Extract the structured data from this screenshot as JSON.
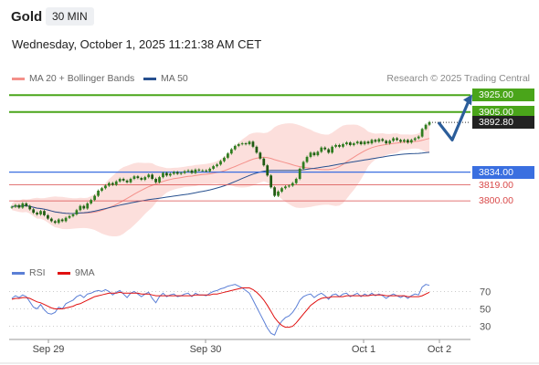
{
  "header": {
    "symbol": "Gold",
    "timeframe": "30 MIN"
  },
  "date_line": "Wednesday, October 1, 2025 11:21:38 AM CET",
  "legend": {
    "main": [
      {
        "label": "MA 20 + Bollinger Bands",
        "color": "#f4908a"
      },
      {
        "label": "MA 50",
        "color": "#27508f"
      }
    ],
    "rsi": [
      {
        "label": "RSI",
        "color": "#5b7fd6"
      },
      {
        "label": "9MA",
        "color": "#e01010"
      }
    ]
  },
  "credit": "Research © 2025 Trading Central",
  "colors": {
    "resistance": "#4aa51a",
    "support_strong": "#3a6fe0",
    "support": "#d94a4a",
    "candle": "#2e7d1f",
    "band_fill": "#fbd9d6",
    "arrow": "#2b5d9a"
  },
  "chart_data": [
    {
      "type": "candlestick",
      "title": "Gold",
      "ylim": [
        3730,
        3935
      ],
      "x_ticks": [
        "Sep 29",
        "Sep 30",
        "Oct 1",
        "Oct 2"
      ],
      "price_levels": [
        {
          "value": 3925.0,
          "label": "3925.00",
          "kind": "resistance"
        },
        {
          "value": 3905.0,
          "label": "3905.00",
          "kind": "resistance"
        },
        {
          "value": 3892.8,
          "label": "3892.80",
          "kind": "current"
        },
        {
          "value": 3834.0,
          "label": "3834.00",
          "kind": "support_strong"
        },
        {
          "value": 3819.0,
          "label": "3819.00",
          "kind": "support"
        },
        {
          "value": 3800.0,
          "label": "3800.00",
          "kind": "support"
        }
      ],
      "close": [
        3793,
        3795,
        3792,
        3797,
        3794,
        3790,
        3786,
        3784,
        3788,
        3783,
        3779,
        3776,
        3774,
        3778,
        3776,
        3780,
        3782,
        3784,
        3789,
        3794,
        3791,
        3797,
        3801,
        3806,
        3812,
        3815,
        3818,
        3821,
        3819,
        3823,
        3826,
        3824,
        3822,
        3826,
        3829,
        3827,
        3825,
        3828,
        3831,
        3826,
        3822,
        3828,
        3833,
        3830,
        3832,
        3834,
        3832,
        3833,
        3835,
        3836,
        3833,
        3837,
        3836,
        3836,
        3835,
        3838,
        3841,
        3843,
        3847,
        3851,
        3856,
        3861,
        3865,
        3867,
        3868,
        3867,
        3870,
        3864,
        3857,
        3850,
        3842,
        3830,
        3816,
        3806,
        3811,
        3815,
        3817,
        3818,
        3821,
        3826,
        3838,
        3846,
        3852,
        3857,
        3854,
        3858,
        3863,
        3861,
        3857,
        3864,
        3866,
        3864,
        3867,
        3869,
        3866,
        3868,
        3870,
        3867,
        3870,
        3868,
        3872,
        3870,
        3873,
        3871,
        3868,
        3871,
        3874,
        3872,
        3870,
        3872,
        3869,
        3872,
        3874,
        3876,
        3885,
        3890,
        3893
      ]
    },
    {
      "type": "line",
      "title": "RSI",
      "ylim": [
        15,
        85
      ],
      "y_ticks": [
        30,
        50,
        70
      ],
      "series": [
        {
          "name": "RSI",
          "values": [
            62,
            65,
            63,
            66,
            64,
            58,
            52,
            50,
            55,
            49,
            45,
            44,
            46,
            52,
            50,
            56,
            58,
            60,
            64,
            66,
            63,
            67,
            68,
            70,
            71,
            70,
            72,
            70,
            66,
            69,
            71,
            67,
            63,
            68,
            70,
            67,
            64,
            67,
            69,
            62,
            57,
            64,
            68,
            64,
            66,
            67,
            64,
            65,
            67,
            68,
            64,
            68,
            66,
            66,
            65,
            68,
            70,
            71,
            73,
            74,
            76,
            77,
            78,
            76,
            74,
            71,
            68,
            60,
            52,
            44,
            36,
            28,
            22,
            20,
            30,
            36,
            40,
            42,
            46,
            52,
            60,
            64,
            66,
            67,
            63,
            66,
            68,
            65,
            61,
            66,
            67,
            64,
            67,
            68,
            64,
            66,
            68,
            64,
            67,
            65,
            68,
            65,
            67,
            65,
            62,
            65,
            67,
            65,
            63,
            65,
            62,
            65,
            67,
            66,
            75,
            78,
            77
          ]
        },
        {
          "name": "9MA",
          "values": [
            61,
            62,
            62,
            63,
            63,
            62,
            60,
            58,
            57,
            55,
            53,
            51,
            50,
            50,
            50,
            51,
            52,
            53,
            55,
            56,
            58,
            60,
            62,
            64,
            65,
            66,
            67,
            68,
            68,
            68,
            69,
            68,
            68,
            68,
            68,
            68,
            67,
            67,
            67,
            66,
            65,
            65,
            65,
            65,
            65,
            65,
            65,
            65,
            65,
            65,
            65,
            66,
            66,
            66,
            66,
            66,
            67,
            67,
            68,
            69,
            70,
            71,
            72,
            73,
            74,
            74,
            74,
            72,
            69,
            65,
            60,
            54,
            47,
            40,
            35,
            31,
            29,
            29,
            30,
            34,
            39,
            44,
            49,
            54,
            57,
            60,
            62,
            63,
            63,
            64,
            64,
            64,
            64,
            65,
            65,
            65,
            65,
            65,
            65,
            65,
            66,
            66,
            66,
            66,
            65,
            65,
            65,
            65,
            65,
            65,
            64,
            64,
            64,
            64,
            65,
            67,
            69
          ]
        }
      ]
    }
  ]
}
